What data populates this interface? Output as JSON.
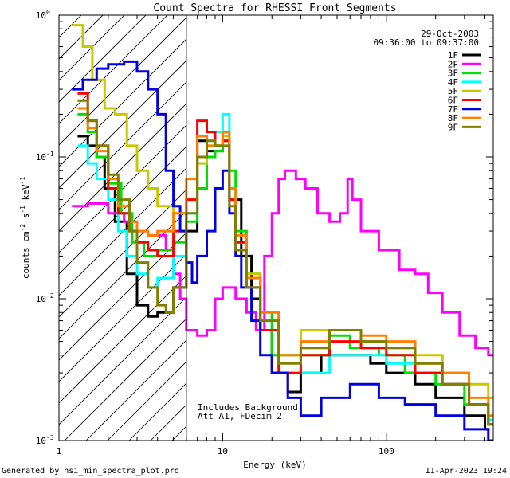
{
  "chart_data": {
    "type": "line",
    "title": "Count Spectra for RHESSI Front Segments",
    "date": "29-Oct-2003",
    "time_range": "09:36:00 to 09:37:00",
    "xlabel": "Energy (keV)",
    "ylabel_main": "counts cm",
    "ylabel_exp1": "-2",
    "ylabel_mid": " s",
    "ylabel_exp2": "-1",
    "ylabel_end": " keV",
    "ylabel_exp3": "-1",
    "xscale": "log",
    "yscale": "log",
    "xlim": [
      1,
      450
    ],
    "ylim": [
      0.001,
      1
    ],
    "xticks": [
      {
        "v": 1,
        "label": "1"
      },
      {
        "v": 10,
        "label": "10"
      },
      {
        "v": 100,
        "label": "100"
      }
    ],
    "yticks": [
      {
        "v": 1,
        "base": "10",
        "exp": "0"
      },
      {
        "v": 0.1,
        "base": "10",
        "exp": "-1"
      },
      {
        "v": 0.01,
        "base": "10",
        "exp": "-2"
      },
      {
        "v": 0.001,
        "base": "10",
        "exp": "-3"
      }
    ],
    "threshold_energy": 6,
    "hatch_region": [
      1,
      6
    ],
    "annotation_lines": [
      "Includes Background",
      "Att A1, FDecim 2"
    ],
    "footer_left": "Generated by hsi_min_spectra_plot.pro",
    "footer_right": "11-Apr-2023 19:24",
    "legend_position": "top-right",
    "series": [
      {
        "name": "1F",
        "color": "#000000",
        "points": [
          [
            1.3,
            0.14
          ],
          [
            1.5,
            0.12
          ],
          [
            1.7,
            0.1
          ],
          [
            1.9,
            0.06
          ],
          [
            2.2,
            0.035
          ],
          [
            2.6,
            0.015
          ],
          [
            3.0,
            0.009
          ],
          [
            3.5,
            0.0075
          ],
          [
            4.0,
            0.008
          ],
          [
            5.0,
            0.012
          ],
          [
            6.0,
            0.03
          ],
          [
            7.0,
            0.13
          ],
          [
            8.0,
            0.11
          ],
          [
            9.0,
            0.11
          ],
          [
            10.0,
            0.13
          ],
          [
            11.0,
            0.05
          ],
          [
            13.0,
            0.02
          ],
          [
            15.0,
            0.01
          ],
          [
            17.0,
            0.006
          ],
          [
            20.0,
            0.003
          ],
          [
            25.0,
            0.0022
          ],
          [
            30.0,
            0.003
          ],
          [
            40.0,
            0.004
          ],
          [
            60.0,
            0.004
          ],
          [
            80.0,
            0.0035
          ],
          [
            100.0,
            0.003
          ],
          [
            150.0,
            0.0025
          ],
          [
            200.0,
            0.002
          ],
          [
            300.0,
            0.0015
          ],
          [
            400.0,
            0.0012
          ]
        ]
      },
      {
        "name": "2F",
        "color": "#ff00ff",
        "points": [
          [
            1.2,
            0.045
          ],
          [
            1.5,
            0.047
          ],
          [
            2.0,
            0.04
          ],
          [
            2.5,
            0.035
          ],
          [
            3.0,
            0.03
          ],
          [
            3.5,
            0.028
          ],
          [
            4.0,
            0.028
          ],
          [
            4.5,
            0.022
          ],
          [
            5.0,
            0.015
          ],
          [
            5.5,
            0.01
          ],
          [
            6.0,
            0.006
          ],
          [
            6.5,
            0.006
          ],
          [
            7.0,
            0.0055
          ],
          [
            8.0,
            0.006
          ],
          [
            9.0,
            0.01
          ],
          [
            10.0,
            0.012
          ],
          [
            11.0,
            0.012
          ],
          [
            12.0,
            0.01
          ],
          [
            14.0,
            0.008
          ],
          [
            16.0,
            0.006
          ],
          [
            18.0,
            0.02
          ],
          [
            20.0,
            0.04
          ],
          [
            22.0,
            0.07
          ],
          [
            24.0,
            0.08
          ],
          [
            28.0,
            0.07
          ],
          [
            32.0,
            0.06
          ],
          [
            38.0,
            0.04
          ],
          [
            45.0,
            0.035
          ],
          [
            52.0,
            0.04
          ],
          [
            58.0,
            0.07
          ],
          [
            62.0,
            0.05
          ],
          [
            70.0,
            0.03
          ],
          [
            90.0,
            0.022
          ],
          [
            120.0,
            0.016
          ],
          [
            150.0,
            0.015
          ],
          [
            180.0,
            0.011
          ],
          [
            220.0,
            0.008
          ],
          [
            280.0,
            0.0055
          ],
          [
            350.0,
            0.0045
          ],
          [
            420.0,
            0.004
          ]
        ]
      },
      {
        "name": "3F",
        "color": "#00e000",
        "points": [
          [
            1.3,
            0.2
          ],
          [
            1.5,
            0.15
          ],
          [
            1.7,
            0.1
          ],
          [
            2.0,
            0.065
          ],
          [
            2.4,
            0.04
          ],
          [
            2.8,
            0.025
          ],
          [
            3.3,
            0.02
          ],
          [
            4.0,
            0.022
          ],
          [
            5.0,
            0.025
          ],
          [
            6.0,
            0.035
          ],
          [
            7.0,
            0.06
          ],
          [
            8.0,
            0.1
          ],
          [
            9.0,
            0.11
          ],
          [
            10.0,
            0.15
          ],
          [
            11.0,
            0.08
          ],
          [
            12.0,
            0.03
          ],
          [
            14.0,
            0.015
          ],
          [
            17.0,
            0.008
          ],
          [
            20.0,
            0.004
          ],
          [
            30.0,
            0.004
          ],
          [
            45.0,
            0.0055
          ],
          [
            60.0,
            0.0045
          ],
          [
            90.0,
            0.004
          ],
          [
            130.0,
            0.003
          ],
          [
            200.0,
            0.0025
          ],
          [
            300.0,
            0.0018
          ],
          [
            420.0,
            0.0013
          ]
        ]
      },
      {
        "name": "4F",
        "color": "#00ffff",
        "points": [
          [
            1.3,
            0.12
          ],
          [
            1.5,
            0.09
          ],
          [
            1.7,
            0.07
          ],
          [
            2.0,
            0.05
          ],
          [
            2.3,
            0.03
          ],
          [
            2.6,
            0.02
          ],
          [
            3.0,
            0.015
          ],
          [
            3.5,
            0.012
          ],
          [
            4.0,
            0.014
          ],
          [
            5.0,
            0.02
          ],
          [
            6.0,
            0.04
          ],
          [
            7.0,
            0.09
          ],
          [
            8.0,
            0.13
          ],
          [
            9.0,
            0.15
          ],
          [
            10.0,
            0.2
          ],
          [
            11.0,
            0.06
          ],
          [
            12.0,
            0.025
          ],
          [
            14.0,
            0.012
          ],
          [
            17.0,
            0.007
          ],
          [
            22.0,
            0.004
          ],
          [
            30.0,
            0.003
          ],
          [
            45.0,
            0.004
          ],
          [
            70.0,
            0.004
          ],
          [
            100.0,
            0.0035
          ],
          [
            150.0,
            0.003
          ],
          [
            220.0,
            0.0025
          ],
          [
            320.0,
            0.0018
          ],
          [
            420.0,
            0.0014
          ]
        ]
      },
      {
        "name": "5F",
        "color": "#c8c800",
        "points": [
          [
            1.2,
            0.85
          ],
          [
            1.4,
            0.6
          ],
          [
            1.6,
            0.35
          ],
          [
            1.9,
            0.22
          ],
          [
            2.2,
            0.2
          ],
          [
            2.6,
            0.12
          ],
          [
            3.0,
            0.08
          ],
          [
            3.5,
            0.06
          ],
          [
            4.0,
            0.045
          ],
          [
            5.0,
            0.04
          ],
          [
            6.0,
            0.05
          ],
          [
            7.0,
            0.09
          ],
          [
            8.0,
            0.12
          ],
          [
            9.0,
            0.12
          ],
          [
            10.0,
            0.14
          ],
          [
            11.0,
            0.05
          ],
          [
            12.0,
            0.025
          ],
          [
            14.0,
            0.015
          ],
          [
            17.0,
            0.008
          ],
          [
            22.0,
            0.004
          ],
          [
            30.0,
            0.006
          ],
          [
            45.0,
            0.006
          ],
          [
            70.0,
            0.005
          ],
          [
            100.0,
            0.0045
          ],
          [
            150.0,
            0.004
          ],
          [
            220.0,
            0.003
          ],
          [
            320.0,
            0.0025
          ],
          [
            420.0,
            0.002
          ]
        ]
      },
      {
        "name": "6F",
        "color": "#ff0000",
        "points": [
          [
            1.3,
            0.28
          ],
          [
            1.5,
            0.18
          ],
          [
            1.7,
            0.12
          ],
          [
            2.0,
            0.06
          ],
          [
            2.3,
            0.04
          ],
          [
            2.7,
            0.03
          ],
          [
            3.0,
            0.025
          ],
          [
            3.5,
            0.022
          ],
          [
            4.0,
            0.02
          ],
          [
            5.0,
            0.03
          ],
          [
            6.0,
            0.05
          ],
          [
            7.0,
            0.18
          ],
          [
            8.0,
            0.15
          ],
          [
            9.0,
            0.12
          ],
          [
            10.0,
            0.13
          ],
          [
            11.0,
            0.05
          ],
          [
            12.0,
            0.025
          ],
          [
            14.0,
            0.012
          ],
          [
            17.0,
            0.006
          ],
          [
            22.0,
            0.003
          ],
          [
            30.0,
            0.004
          ],
          [
            45.0,
            0.005
          ],
          [
            70.0,
            0.0045
          ],
          [
            100.0,
            0.004
          ],
          [
            150.0,
            0.003
          ],
          [
            220.0,
            0.0025
          ],
          [
            320.0,
            0.0018
          ],
          [
            420.0,
            0.0013
          ]
        ]
      },
      {
        "name": "7F",
        "color": "#0000e0",
        "points": [
          [
            1.2,
            0.3
          ],
          [
            1.4,
            0.35
          ],
          [
            1.7,
            0.42
          ],
          [
            2.0,
            0.45
          ],
          [
            2.5,
            0.47
          ],
          [
            3.0,
            0.4
          ],
          [
            3.5,
            0.3
          ],
          [
            4.0,
            0.2
          ],
          [
            4.5,
            0.08
          ],
          [
            5.0,
            0.045
          ],
          [
            5.5,
            0.03
          ],
          [
            6.0,
            0.018
          ],
          [
            6.5,
            0.013
          ],
          [
            7.0,
            0.02
          ],
          [
            8.0,
            0.03
          ],
          [
            9.0,
            0.06
          ],
          [
            10.0,
            0.08
          ],
          [
            11.0,
            0.04
          ],
          [
            12.0,
            0.02
          ],
          [
            13.0,
            0.012
          ],
          [
            15.0,
            0.007
          ],
          [
            17.0,
            0.004
          ],
          [
            20.0,
            0.003
          ],
          [
            25.0,
            0.002
          ],
          [
            30.0,
            0.0015
          ],
          [
            40.0,
            0.002
          ],
          [
            60.0,
            0.0025
          ],
          [
            90.0,
            0.002
          ],
          [
            130.0,
            0.0018
          ],
          [
            200.0,
            0.0015
          ],
          [
            300.0,
            0.0012
          ],
          [
            420.0,
            0.001
          ]
        ]
      },
      {
        "name": "8F",
        "color": "#ff8000",
        "points": [
          [
            1.3,
            0.22
          ],
          [
            1.5,
            0.16
          ],
          [
            1.7,
            0.11
          ],
          [
            2.0,
            0.07
          ],
          [
            2.3,
            0.045
          ],
          [
            2.7,
            0.035
          ],
          [
            3.0,
            0.03
          ],
          [
            3.5,
            0.028
          ],
          [
            4.0,
            0.03
          ],
          [
            5.0,
            0.04
          ],
          [
            6.0,
            0.07
          ],
          [
            7.0,
            0.14
          ],
          [
            8.0,
            0.12
          ],
          [
            9.0,
            0.12
          ],
          [
            10.0,
            0.15
          ],
          [
            11.0,
            0.06
          ],
          [
            12.0,
            0.028
          ],
          [
            14.0,
            0.014
          ],
          [
            17.0,
            0.008
          ],
          [
            22.0,
            0.004
          ],
          [
            30.0,
            0.005
          ],
          [
            45.0,
            0.006
          ],
          [
            70.0,
            0.0055
          ],
          [
            100.0,
            0.005
          ],
          [
            150.0,
            0.0035
          ],
          [
            220.0,
            0.003
          ],
          [
            320.0,
            0.002
          ],
          [
            420.0,
            0.0015
          ]
        ]
      },
      {
        "name": "9F",
        "color": "#808000",
        "points": [
          [
            1.3,
            0.25
          ],
          [
            1.5,
            0.18
          ],
          [
            1.7,
            0.12
          ],
          [
            2.0,
            0.075
          ],
          [
            2.3,
            0.05
          ],
          [
            2.7,
            0.03
          ],
          [
            3.0,
            0.018
          ],
          [
            3.5,
            0.012
          ],
          [
            4.0,
            0.009
          ],
          [
            4.5,
            0.008
          ],
          [
            5.0,
            0.012
          ],
          [
            6.0,
            0.04
          ],
          [
            7.0,
            0.1
          ],
          [
            8.0,
            0.13
          ],
          [
            9.0,
            0.12
          ],
          [
            10.0,
            0.12
          ],
          [
            11.0,
            0.045
          ],
          [
            12.0,
            0.022
          ],
          [
            14.0,
            0.012
          ],
          [
            17.0,
            0.007
          ],
          [
            22.0,
            0.0035
          ],
          [
            30.0,
            0.0045
          ],
          [
            45.0,
            0.006
          ],
          [
            70.0,
            0.005
          ],
          [
            100.0,
            0.0045
          ],
          [
            150.0,
            0.0035
          ],
          [
            220.0,
            0.0025
          ],
          [
            320.0,
            0.0018
          ],
          [
            420.0,
            0.0013
          ]
        ]
      }
    ]
  }
}
